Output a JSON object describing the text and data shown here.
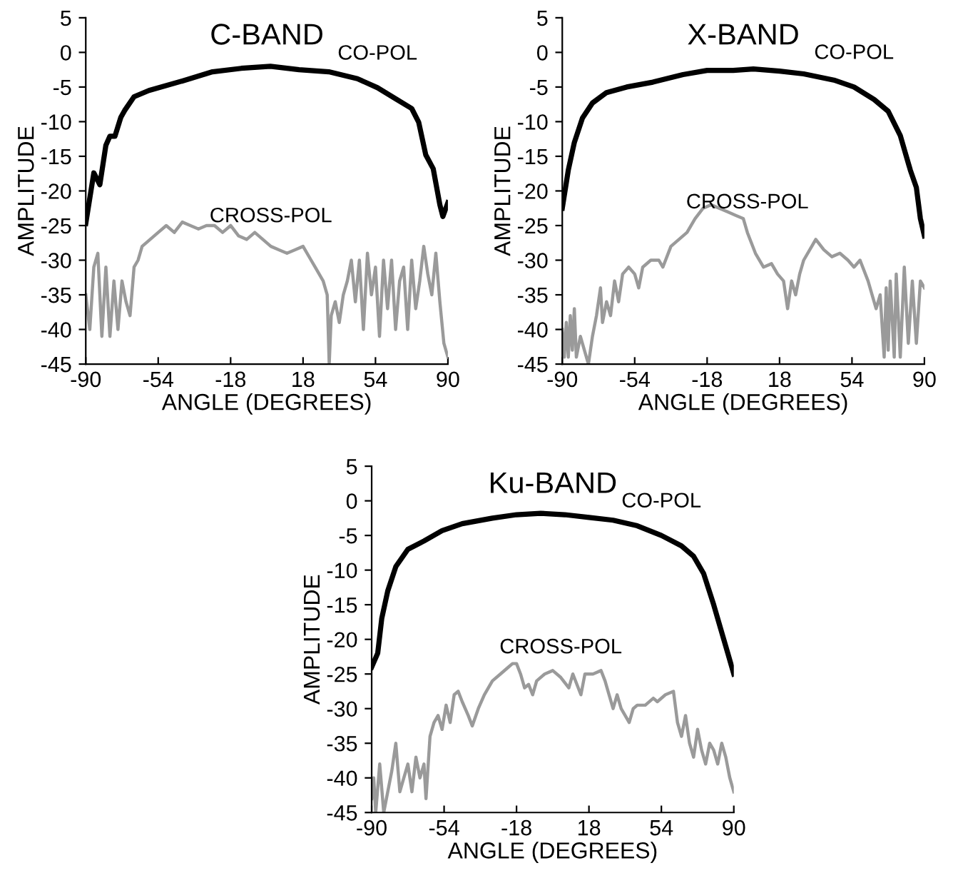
{
  "chart_data": [
    {
      "type": "line",
      "title": "C-BAND",
      "xlabel": "ANGLE (DEGREES)",
      "ylabel": "AMPLITUDE",
      "xlim": [
        -90,
        90
      ],
      "ylim": [
        -45,
        5
      ],
      "xticks": [
        -90,
        -54,
        -18,
        18,
        54,
        90
      ],
      "yticks": [
        -45,
        -40,
        -35,
        -30,
        -25,
        -20,
        -15,
        -10,
        -5,
        0,
        5
      ],
      "series": [
        {
          "name": "CO-POL",
          "color": "#000000",
          "x": [
            -90,
            -86,
            -83,
            -80,
            -78,
            -75.5,
            -72.6,
            -70.7,
            -66,
            -58.6,
            -41.7,
            -27,
            -12.7,
            1.8,
            16,
            30.8,
            45,
            55,
            64.6,
            72,
            75.5,
            79,
            82.7,
            86,
            87.5,
            90
          ],
          "values": [
            -24.7,
            -17.4,
            -19.1,
            -13.4,
            -12.1,
            -12.1,
            -9.4,
            -8.4,
            -6.4,
            -5.5,
            -4.1,
            -2.8,
            -2.3,
            -2.0,
            -2.5,
            -2.8,
            -3.8,
            -5.1,
            -6.8,
            -8.1,
            -10.1,
            -14.8,
            -16.8,
            -22,
            -23.7,
            -21.7
          ]
        },
        {
          "name": "CROSS-POL",
          "color": "#9a9a9a",
          "x": [
            -90,
            -88,
            -86,
            -84,
            -82,
            -80,
            -78,
            -76,
            -74,
            -72,
            -70,
            -68,
            -66,
            -64,
            -62,
            -58,
            -54,
            -50,
            -46,
            -42,
            -38,
            -34,
            -30,
            -26,
            -22,
            -18,
            -14,
            -10,
            -6,
            -2,
            2,
            6,
            10,
            14,
            18,
            22,
            24,
            28,
            30,
            31,
            32,
            34,
            36,
            38,
            40,
            42,
            44,
            46,
            48,
            50,
            52,
            54,
            56,
            58,
            60,
            62,
            64,
            66,
            68,
            70,
            72,
            74,
            76,
            78,
            80,
            82,
            84,
            86,
            88,
            90
          ],
          "values": [
            -35,
            -40,
            -31,
            -29,
            -41,
            -31,
            -41,
            -33,
            -40,
            -33,
            -36,
            -38,
            -31,
            -30,
            -28,
            -27,
            -26,
            -25,
            -26,
            -24.5,
            -25,
            -25.5,
            -25,
            -25,
            -26,
            -25,
            -26.5,
            -27,
            -26,
            -27,
            -28,
            -28.5,
            -29,
            -28.5,
            -28,
            -30,
            -31,
            -33,
            -35,
            -45,
            -38,
            -36,
            -39,
            -35,
            -33,
            -30,
            -36,
            -30,
            -40,
            -29,
            -35,
            -31,
            -41,
            -30,
            -37,
            -30,
            -40,
            -33,
            -31,
            -40,
            -30,
            -37,
            -33,
            -28,
            -32,
            -35,
            -29,
            -36,
            -42,
            -44
          ]
        }
      ]
    },
    {
      "type": "line",
      "title": "X-BAND",
      "xlabel": "ANGLE (DEGREES)",
      "ylabel": "AMPLITUDE",
      "xlim": [
        -90,
        90
      ],
      "ylim": [
        -45,
        5
      ],
      "xticks": [
        -90,
        -54,
        -18,
        18,
        54,
        90
      ],
      "yticks": [
        -45,
        -40,
        -35,
        -30,
        -25,
        -20,
        -15,
        -10,
        -5,
        0,
        5
      ],
      "series": [
        {
          "name": "CO-POL",
          "color": "#000000",
          "x": [
            -90,
            -87,
            -84,
            -80,
            -75,
            -68,
            -58,
            -45,
            -30,
            -18,
            -5,
            5,
            18,
            30,
            45,
            55,
            65,
            72,
            78,
            83,
            86,
            88,
            90
          ],
          "values": [
            -22.5,
            -17,
            -13,
            -9.5,
            -7.3,
            -5.8,
            -5,
            -4.3,
            -3.2,
            -2.6,
            -2.6,
            -2.4,
            -2.7,
            -3.1,
            -4,
            -5,
            -6.8,
            -8.5,
            -12,
            -17,
            -19.5,
            -24,
            -26.5
          ]
        },
        {
          "name": "CROSS-POL",
          "color": "#9a9a9a",
          "x": [
            -90,
            -89,
            -88,
            -87,
            -86,
            -85,
            -84,
            -83,
            -81,
            -79,
            -77,
            -75,
            -73,
            -71,
            -70,
            -68,
            -66,
            -64,
            -62,
            -60,
            -57,
            -54,
            -52,
            -50,
            -46,
            -42,
            -40,
            -36,
            -32,
            -28,
            -24,
            -20,
            -16,
            -12,
            -8,
            -4,
            0,
            2,
            6,
            10,
            14,
            17,
            20,
            22,
            24,
            26,
            28,
            30,
            34,
            36,
            40,
            44,
            48,
            52,
            55,
            58,
            62,
            64,
            66,
            68,
            70,
            71,
            72,
            73,
            75,
            76,
            78,
            80,
            82,
            84,
            86,
            88,
            90
          ],
          "values": [
            -40,
            -44,
            -39,
            -44,
            -38,
            -43,
            -37,
            -44,
            -41,
            -43,
            -45,
            -41,
            -38,
            -34,
            -39,
            -36,
            -38,
            -33,
            -36,
            -32,
            -31,
            -32,
            -34,
            -31,
            -30,
            -30,
            -31,
            -28,
            -27,
            -26,
            -24,
            -22.5,
            -22,
            -22.5,
            -23,
            -23.5,
            -24,
            -26,
            -29,
            -31,
            -30.5,
            -32,
            -33,
            -37,
            -33,
            -35,
            -32,
            -30,
            -28,
            -27,
            -28.5,
            -29.5,
            -29,
            -30,
            -31,
            -30,
            -33,
            -35,
            -37,
            -35,
            -44,
            -34,
            -43,
            -33,
            -44,
            -32,
            -44,
            -31,
            -42,
            -33,
            -42,
            -33,
            -34
          ]
        }
      ]
    },
    {
      "type": "line",
      "title": "Ku-BAND",
      "xlabel": "ANGLE (DEGREES)",
      "ylabel": "AMPLITUDE",
      "xlim": [
        -90,
        90
      ],
      "ylim": [
        -45,
        5
      ],
      "xticks": [
        -90,
        -54,
        -18,
        18,
        54,
        90
      ],
      "yticks": [
        -45,
        -40,
        -35,
        -30,
        -25,
        -20,
        -15,
        -10,
        -5,
        0,
        5
      ],
      "series": [
        {
          "name": "CO-POL",
          "color": "#000000",
          "x": [
            -90,
            -87,
            -85,
            -82,
            -78,
            -72,
            -64,
            -55,
            -45,
            -30,
            -18,
            -6,
            6,
            18,
            30,
            42,
            54,
            64,
            70,
            75,
            80,
            84,
            87,
            90
          ],
          "values": [
            -24,
            -22,
            -17,
            -13,
            -9.5,
            -7,
            -5.8,
            -4.3,
            -3.3,
            -2.5,
            -2.0,
            -1.8,
            -2.0,
            -2.4,
            -2.8,
            -3.6,
            -5.0,
            -6.5,
            -8,
            -10.5,
            -15,
            -19,
            -22,
            -25
          ]
        },
        {
          "name": "CROSS-POL",
          "color": "#9a9a9a",
          "x": [
            -90,
            -89,
            -88,
            -86,
            -84,
            -82,
            -80,
            -78,
            -76,
            -74,
            -72,
            -70,
            -68,
            -66,
            -64,
            -63,
            -61,
            -59,
            -57,
            -55,
            -53,
            -51,
            -49,
            -47,
            -45,
            -42,
            -40,
            -37,
            -34,
            -30,
            -26,
            -22,
            -20,
            -18,
            -16,
            -14,
            -12,
            -10,
            -8,
            -4,
            0,
            4,
            8,
            10,
            12,
            14,
            16,
            20,
            24,
            26,
            28,
            30,
            32,
            34,
            36,
            38,
            40,
            42,
            46,
            50,
            52,
            56,
            60,
            62,
            64,
            66,
            68,
            70,
            72,
            74,
            76,
            78,
            80,
            82,
            84,
            86,
            88,
            90
          ],
          "values": [
            -43,
            -40,
            -45,
            -38,
            -45,
            -42,
            -39,
            -35,
            -42,
            -40,
            -38,
            -42,
            -37,
            -40,
            -38,
            -43,
            -34,
            -32,
            -31,
            -33,
            -29.5,
            -32,
            -28,
            -27.5,
            -29,
            -31,
            -32.5,
            -30,
            -28,
            -26,
            -25,
            -24,
            -23.5,
            -23.5,
            -25,
            -27,
            -26.5,
            -28,
            -26,
            -25,
            -24.5,
            -25.5,
            -27,
            -25,
            -26.5,
            -28,
            -25,
            -25,
            -24.5,
            -26,
            -28,
            -30,
            -28,
            -30,
            -31,
            -32,
            -30,
            -29.5,
            -29.5,
            -28.5,
            -29,
            -28,
            -27.5,
            -32,
            -34,
            -31,
            -35,
            -37,
            -33,
            -36,
            -38,
            -35,
            -36,
            -38,
            -35,
            -37,
            -40,
            -42
          ]
        }
      ]
    }
  ]
}
